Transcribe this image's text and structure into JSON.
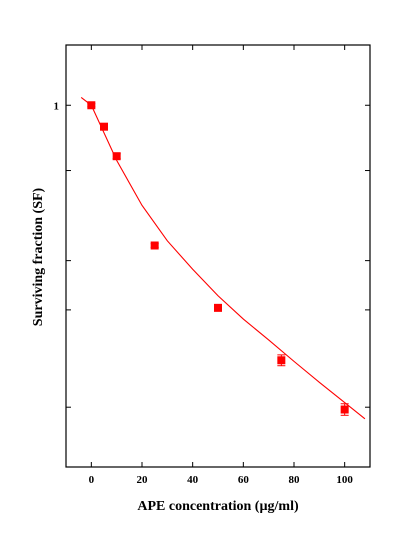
{
  "chart_data": {
    "type": "scatter",
    "title": "",
    "xlabel": "APE concentration (µg/ml)",
    "ylabel": "Surviving fraction (SF)",
    "xlim": [
      -10,
      110
    ],
    "ylim_log": [
      0.63,
      1.08
    ],
    "y_scale": "log",
    "grid": false,
    "x_ticks": [
      {
        "value": 0,
        "label": "0"
      },
      {
        "value": 20,
        "label": "20"
      },
      {
        "value": 40,
        "label": "40"
      },
      {
        "value": 60,
        "label": "60"
      },
      {
        "value": 80,
        "label": "80"
      },
      {
        "value": 100,
        "label": "100"
      }
    ],
    "y_ticks": [
      {
        "value": 1.0,
        "label": "1"
      },
      {
        "value": 0.92,
        "label": ""
      },
      {
        "value": 0.82,
        "label": ""
      },
      {
        "value": 0.77,
        "label": ""
      },
      {
        "value": 0.68,
        "label": ""
      }
    ],
    "series": [
      {
        "x": [
          0,
          5,
          10,
          25,
          50,
          75,
          100
        ],
        "y": [
          1.0,
          0.973,
          0.937,
          0.836,
          0.772,
          0.722,
          0.678
        ],
        "yerr": [
          0.002,
          0.002,
          0.003,
          0.002,
          0.003,
          0.005,
          0.005
        ],
        "color": "#ff0000",
        "marker": "square"
      }
    ],
    "fit_curve": {
      "color": "#ff0000",
      "x": [
        -4,
        0,
        10,
        20,
        30,
        40,
        50,
        60,
        70,
        80,
        90,
        100,
        108
      ],
      "y": [
        1.01,
        1.0,
        0.932,
        0.88,
        0.841,
        0.811,
        0.784,
        0.761,
        0.741,
        0.721,
        0.702,
        0.684,
        0.67
      ]
    }
  }
}
